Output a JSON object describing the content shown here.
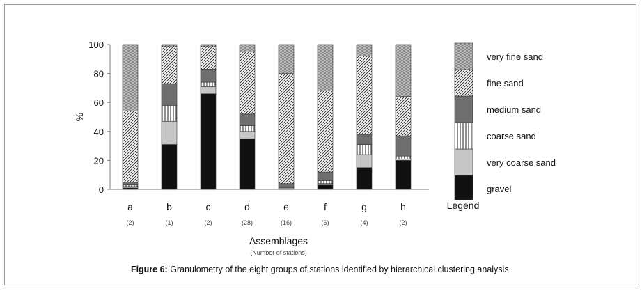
{
  "chart_data": {
    "type": "bar",
    "stacked": true,
    "categories": [
      "a",
      "b",
      "c",
      "d",
      "e",
      "f",
      "g",
      "h"
    ],
    "category_sublabels": [
      "(2)",
      "(1)",
      "(2)",
      "(28)",
      "(16)",
      "(6)",
      "(4)",
      "(2)"
    ],
    "xlabel": "Assemblages",
    "xlabel_sub": "(Number of stations)",
    "ylabel": "%",
    "ylim": [
      0,
      100
    ],
    "yticks": [
      0,
      20,
      40,
      60,
      80,
      100
    ],
    "grid": false,
    "legend_title": "Legend",
    "legend_position": "right",
    "series": [
      {
        "name": "gravel",
        "key": "gravel",
        "values": [
          1,
          31,
          66,
          35,
          0,
          3,
          15,
          20
        ]
      },
      {
        "name": "very coarse sand",
        "key": "vcs",
        "values": [
          1,
          16,
          5,
          5,
          1,
          1,
          9,
          1
        ]
      },
      {
        "name": "coarse sand",
        "key": "cs",
        "values": [
          1,
          11,
          3,
          4,
          0,
          2,
          7,
          2
        ]
      },
      {
        "name": "medium sand",
        "key": "ms",
        "values": [
          2,
          15,
          9,
          8,
          3,
          6,
          7,
          14
        ]
      },
      {
        "name": "fine sand",
        "key": "fs",
        "values": [
          49,
          26,
          16,
          43,
          76,
          56,
          54,
          27
        ]
      },
      {
        "name": "very fine sand",
        "key": "vfs",
        "values": [
          46,
          1,
          1,
          5,
          20,
          32,
          8,
          36
        ]
      }
    ]
  },
  "caption": {
    "label": "Figure 6:",
    "text": " Granulometry of the eight groups of stations identified by hierarchical clustering analysis."
  }
}
